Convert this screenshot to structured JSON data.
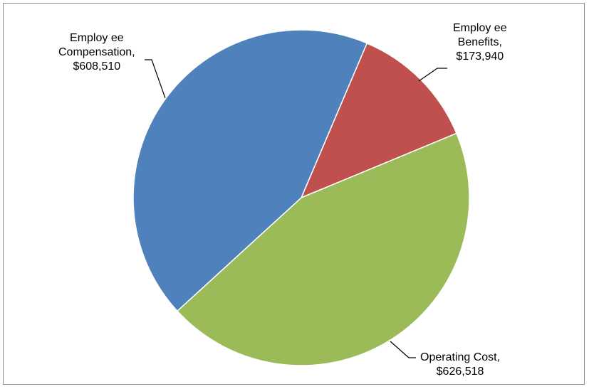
{
  "chart_data": {
    "type": "pie",
    "title": "",
    "slices": [
      {
        "label_line1": "Employ ee",
        "label_line2": "Benefits,",
        "value_text": "$173,940",
        "value": 173940,
        "color": "#c0504d"
      },
      {
        "label_line1": "Operating Cost,",
        "label_line2": "",
        "value_text": "$626,518",
        "value": 626518,
        "color": "#9bbb59"
      },
      {
        "label_line1": "Employ ee",
        "label_line2": "Compensation,",
        "value_text": "$608,510",
        "value": 608510,
        "color": "#4f81bd"
      }
    ],
    "legend": "none",
    "start_angle_deg": 23,
    "direction": "clockwise"
  }
}
